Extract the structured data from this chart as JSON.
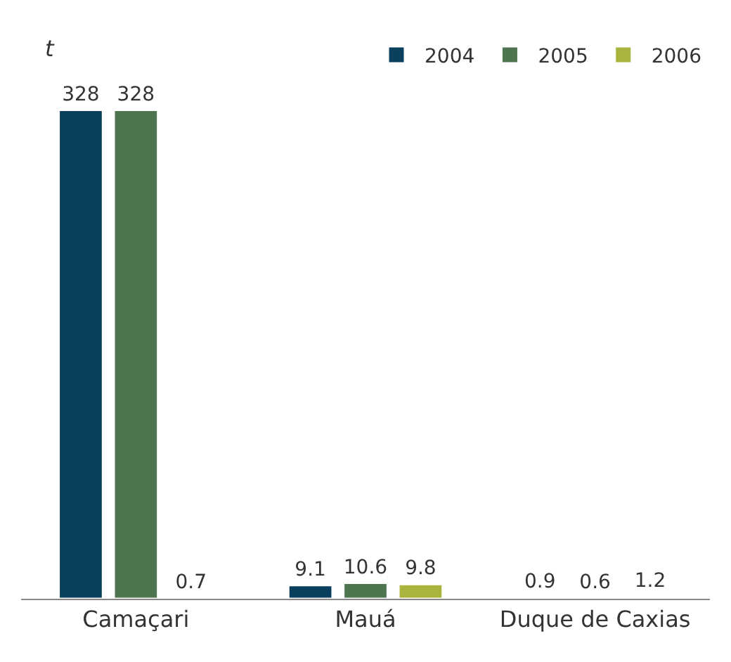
{
  "chart_data": {
    "type": "bar",
    "ylabel": "t",
    "categories": [
      "Camaçari",
      "Mauá",
      "Duque de Caxias"
    ],
    "series": [
      {
        "name": "2004",
        "color": "#0b3f5e",
        "values": [
          328,
          9.1,
          0.9
        ]
      },
      {
        "name": "2005",
        "color": "#4f7550",
        "values": [
          328,
          10.6,
          0.6
        ]
      },
      {
        "name": "2006",
        "color": "#a8b43c",
        "values": [
          0.7,
          9.8,
          1.2
        ]
      }
    ],
    "data_labels": true,
    "legend": "top right",
    "tick_labels": "x"
  }
}
